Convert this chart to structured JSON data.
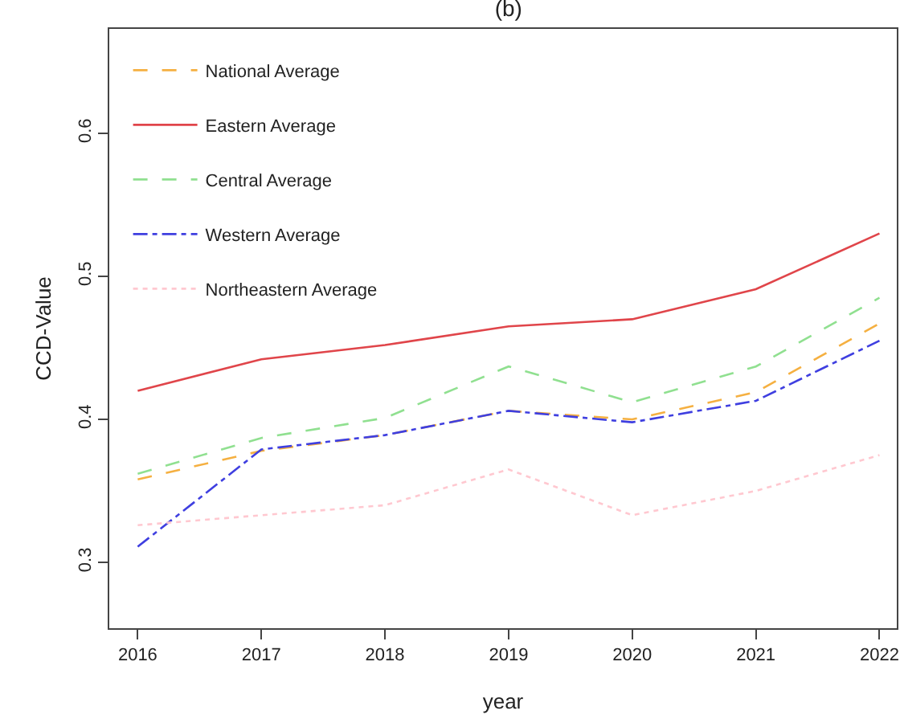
{
  "chart_data": {
    "type": "line",
    "title": "(b)",
    "xlabel": "year",
    "ylabel": "CCD-Value",
    "x": [
      2016,
      2017,
      2018,
      2019,
      2020,
      2021,
      2022
    ],
    "xlim": [
      2015.77,
      2022.14
    ],
    "xticks": [
      2016,
      2017,
      2018,
      2019,
      2020,
      2021,
      2022
    ],
    "ylim": [
      0.254,
      0.673
    ],
    "yticks": [
      {
        "value": 0.3,
        "label": "0.3"
      },
      {
        "value": 0.4,
        "label": "0.4"
      },
      {
        "value": 0.5,
        "label": "0.5"
      },
      {
        "value": 0.6,
        "label": "0.6"
      }
    ],
    "grid": false,
    "legend": "top left",
    "marker": "none",
    "series": [
      {
        "name": "National Average",
        "color": "#f5b041",
        "line_style": "dashed",
        "values": [
          0.358,
          0.378,
          0.389,
          0.406,
          0.4,
          0.419,
          0.467
        ]
      },
      {
        "name": "Eastern Average",
        "color": "#e0454a",
        "line_style": "solid",
        "values": [
          0.42,
          0.442,
          0.452,
          0.465,
          0.47,
          0.491,
          0.53
        ]
      },
      {
        "name": "Central Average",
        "color": "#90e090",
        "line_style": "dashed",
        "values": [
          0.362,
          0.387,
          0.401,
          0.437,
          0.412,
          0.437,
          0.485
        ]
      },
      {
        "name": "Western Average",
        "color": "#3f3fe0",
        "line_style": "dashdot",
        "values": [
          0.311,
          0.379,
          0.389,
          0.406,
          0.398,
          0.413,
          0.455
        ]
      },
      {
        "name": "Northeastern Average",
        "color": "#ffc8d0",
        "line_style": "dotted",
        "values": [
          0.326,
          0.333,
          0.34,
          0.365,
          0.333,
          0.35,
          0.375
        ]
      }
    ]
  }
}
